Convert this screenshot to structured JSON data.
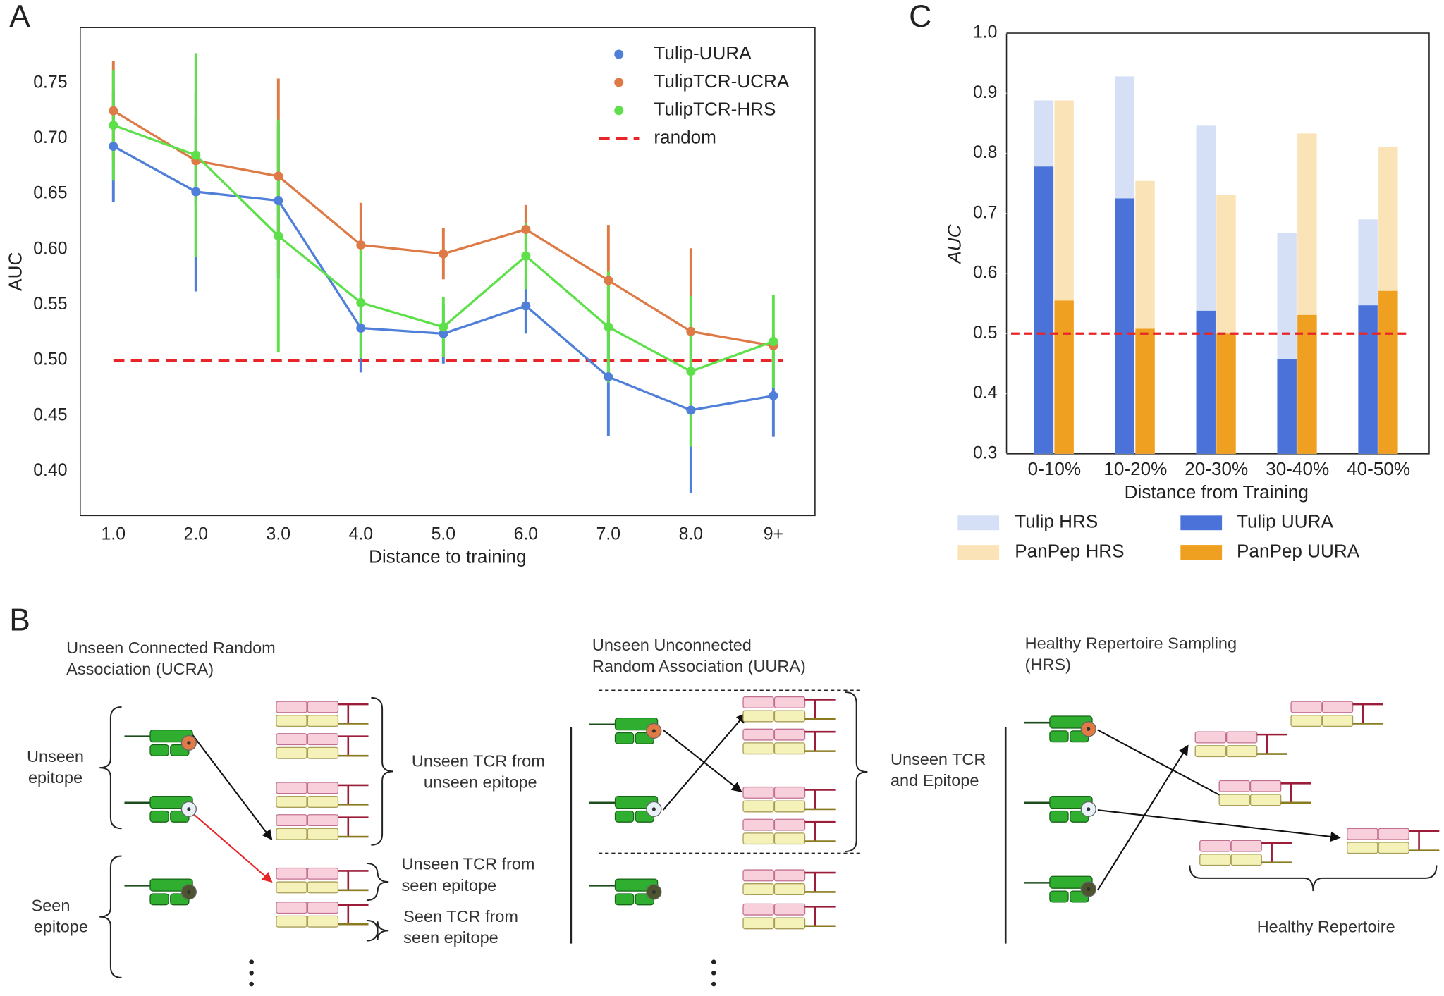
{
  "chart_data": [
    {
      "type": "line",
      "xlabel": "Distance to training",
      "ylabel": "AUC",
      "categories": [
        "1.0",
        "2.0",
        "3.0",
        "4.0",
        "5.0",
        "6.0",
        "7.0",
        "8.0",
        "9+"
      ],
      "series": [
        {
          "name": "Tulip-UURA",
          "color": "#4f7fd8",
          "values": [
            0.693,
            0.652,
            0.644,
            0.529,
            0.524,
            0.549,
            0.485,
            0.455,
            0.468
          ],
          "errors": [
            0.05,
            0.09,
            0.07,
            0.04,
            0.027,
            0.025,
            0.053,
            0.075,
            0.037
          ]
        },
        {
          "name": "TulipTCR-UCRA",
          "color": "#dd7a45",
          "values": [
            0.725,
            0.68,
            0.666,
            0.604,
            0.596,
            0.618,
            0.572,
            0.526,
            0.513
          ],
          "errors": [
            0.045,
            0.04,
            0.088,
            0.038,
            0.023,
            0.022,
            0.05,
            0.075,
            0.01
          ]
        },
        {
          "name": "TulipTCR-HRS",
          "color": "#5ee04a",
          "values": [
            0.712,
            0.685,
            0.612,
            0.552,
            0.53,
            0.594,
            0.53,
            0.49,
            0.517
          ],
          "errors": [
            0.05,
            0.092,
            0.105,
            0.05,
            0.027,
            0.03,
            0.05,
            0.068,
            0.042
          ]
        }
      ],
      "hline": {
        "name": "random",
        "value": 0.5,
        "color": "#e8262a"
      },
      "ylim": [
        0.36,
        0.8
      ],
      "yticks": [
        {
          "value": 0.4,
          "label": "0.40"
        },
        0.45,
        {
          "value": 0.5,
          "label": "0.50"
        },
        0.55,
        {
          "value": 0.6,
          "label": "0.60"
        },
        0.65,
        {
          "value": 0.7,
          "label": "0.70"
        },
        0.75
      ],
      "legend": "upper right"
    },
    {
      "type": "bar",
      "xlabel": "Distance from Training",
      "ylabel": "AUC",
      "categories": [
        "0-10%",
        "10-20%",
        "20-30%",
        "30-40%",
        "40-50%"
      ],
      "series": [
        {
          "name": "Tulip HRS",
          "color": "#d5e0f6",
          "values": [
            0.888,
            0.928,
            0.846,
            0.667,
            0.69
          ]
        },
        {
          "name": "Tulip UURA",
          "color": "#4a72d8",
          "values": [
            0.778,
            0.725,
            0.538,
            0.458,
            0.547
          ]
        },
        {
          "name": "PanPep HRS",
          "color": "#fbe3b8",
          "values": [
            0.888,
            0.754,
            0.731,
            0.833,
            0.81
          ]
        },
        {
          "name": "PanPep UURA",
          "color": "#f0a020",
          "values": [
            0.555,
            0.508,
            0.5,
            0.531,
            0.571
          ]
        }
      ],
      "hline": {
        "value": 0.5,
        "color": "#e8262a"
      },
      "ylim": [
        0.3,
        1.0
      ],
      "yticks": [
        0.3,
        0.4,
        0.5,
        0.6,
        0.7,
        0.8,
        0.9,
        {
          "value": 1,
          "label": "1.0"
        }
      ],
      "legend": "below"
    }
  ],
  "diagram": {
    "panels": [
      "A",
      "B",
      "C"
    ],
    "sections": [
      {
        "title": [
          "Unseen Connected Random",
          "Association (UCRA)"
        ],
        "labels": [
          [
            "Unseen",
            "epitope"
          ],
          [
            "Seen",
            "epitope"
          ],
          [
            "Unseen TCR from",
            "unseen epitope"
          ],
          [
            "Unseen TCR from",
            "seen epitope"
          ],
          [
            "Seen TCR from",
            "seen epitope"
          ]
        ]
      },
      {
        "title": [
          "Unseen Unconnected",
          "Random Association (UURA)"
        ],
        "labels": [
          [
            "Unseen TCR",
            "and Epitope"
          ]
        ]
      },
      {
        "title": [
          "Healthy Repertoire Sampling",
          "(HRS)"
        ],
        "labels": [
          [
            "Healthy Repertoire"
          ]
        ]
      }
    ]
  }
}
